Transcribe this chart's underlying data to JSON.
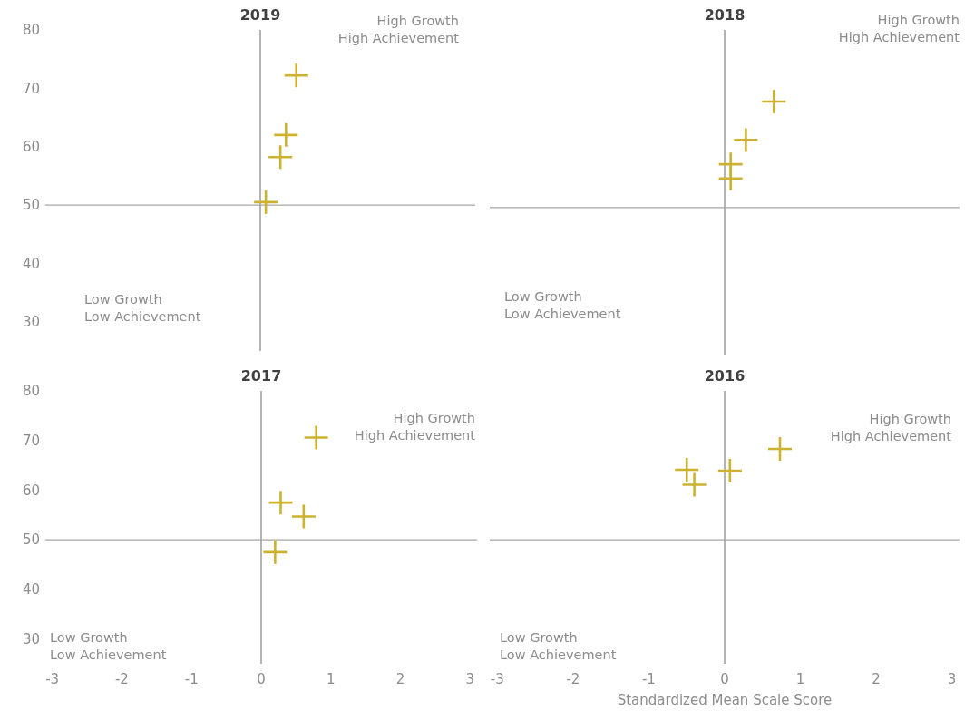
{
  "chart_data": [
    {
      "type": "scatter",
      "title": "2019",
      "x": [
        0.52,
        0.37,
        0.29,
        0.08
      ],
      "values": [
        72.2,
        62.0,
        58.2,
        50.5
      ],
      "color": "#cdb22f",
      "marker": "cross",
      "xlim": [
        -3.1,
        3.1
      ],
      "ylim": [
        25,
        80
      ],
      "yticks": [
        30,
        40,
        50,
        60,
        70,
        80
      ],
      "tick_labels": "y",
      "ref_lines": [
        {
          "axis": "x",
          "value": 0,
          "color": "#8c8c8c"
        },
        {
          "axis": "y",
          "value": 50,
          "color": "#a6a6a6"
        }
      ],
      "annotations": [
        "High Growth",
        "High Achievement",
        "Low Growth",
        "Low Achievement"
      ]
    },
    {
      "type": "scatter",
      "title": "2018",
      "x": [
        0.65,
        0.28,
        0.08,
        0.08
      ],
      "values": [
        67.9,
        61.4,
        57.3,
        54.9
      ],
      "color": "#cdb22f",
      "marker": "cross",
      "xlim": [
        -3.1,
        3.1
      ],
      "ylim": [
        25,
        80
      ],
      "tick_labels": false,
      "ref_lines": [
        {
          "axis": "x",
          "value": 0,
          "color": "#8c8c8c"
        },
        {
          "axis": "y",
          "value": 50,
          "color": "#a6a6a6"
        }
      ],
      "annotations": [
        "High Growth",
        "High Achievement",
        "Low Growth",
        "Low Achievement"
      ]
    },
    {
      "type": "scatter",
      "title": "2017",
      "x": [
        0.79,
        0.28,
        0.61,
        0.2
      ],
      "values": [
        70.6,
        57.5,
        54.7,
        47.5
      ],
      "color": "#cdb22f",
      "marker": "cross",
      "xlim": [
        -3.1,
        3.1
      ],
      "xticks": [
        -3,
        -2,
        -1,
        0,
        1,
        2,
        3
      ],
      "ylim": [
        25,
        80
      ],
      "yticks": [
        30,
        40,
        50,
        60,
        70,
        80
      ],
      "ref_lines": [
        {
          "axis": "x",
          "value": 0,
          "color": "#8c8c8c"
        },
        {
          "axis": "y",
          "value": 50,
          "color": "#a6a6a6"
        }
      ],
      "annotations": [
        "High Growth",
        "High Achievement",
        "Low Growth",
        "Low Achievement"
      ]
    },
    {
      "type": "scatter",
      "title": "2016",
      "xlabel": "Standardized Mean Scale Score",
      "x": [
        0.73,
        -0.5,
        0.07,
        -0.4
      ],
      "values": [
        68.3,
        64.1,
        63.9,
        61.1
      ],
      "color": "#cdb22f",
      "marker": "cross",
      "xlim": [
        -3.1,
        3.1
      ],
      "xticks": [
        -3,
        -2,
        -1,
        0,
        1,
        2,
        3
      ],
      "ylim": [
        25,
        80
      ],
      "tick_labels": "x",
      "ref_lines": [
        {
          "axis": "x",
          "value": 0,
          "color": "#8c8c8c"
        },
        {
          "axis": "y",
          "value": 50,
          "color": "#a6a6a6"
        }
      ],
      "annotations": [
        "High Growth",
        "High Achievement",
        "Low Growth",
        "Low Achievement"
      ]
    }
  ]
}
